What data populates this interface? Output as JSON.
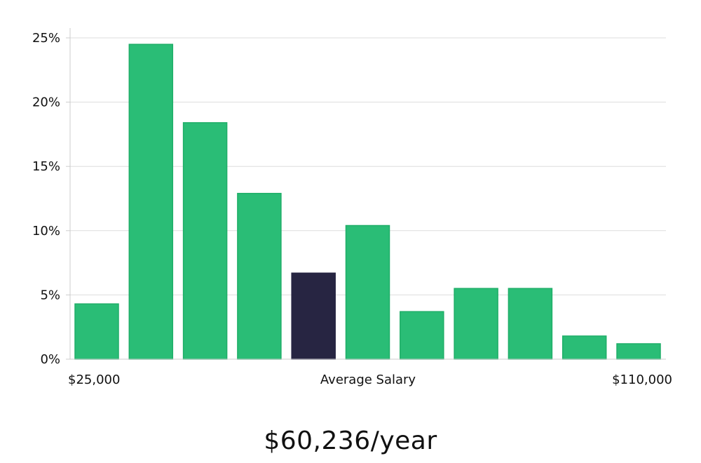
{
  "chart_data": {
    "type": "bar",
    "title": "",
    "xlabel": "Average Salary",
    "ylabel": "",
    "ylim": [
      0,
      25
    ],
    "yticks": [
      0,
      5,
      10,
      15,
      20,
      25
    ],
    "ytick_labels": [
      "0%",
      "5%",
      "10%",
      "15%",
      "20%",
      "25%"
    ],
    "x_min_label": "$25,000",
    "x_max_label": "$110,000",
    "values": [
      4.3,
      24.5,
      18.4,
      12.9,
      6.7,
      10.4,
      3.7,
      5.5,
      5.5,
      1.8,
      1.2
    ],
    "highlight_index": 4,
    "grid": true,
    "colors": {
      "bar": "#2abd76",
      "bar_stroke": "#1fae68",
      "highlight": "#272542",
      "grid": "#dddddd",
      "axis": "#cccccc"
    }
  },
  "summary": {
    "average_salary": "$60,236/year"
  }
}
